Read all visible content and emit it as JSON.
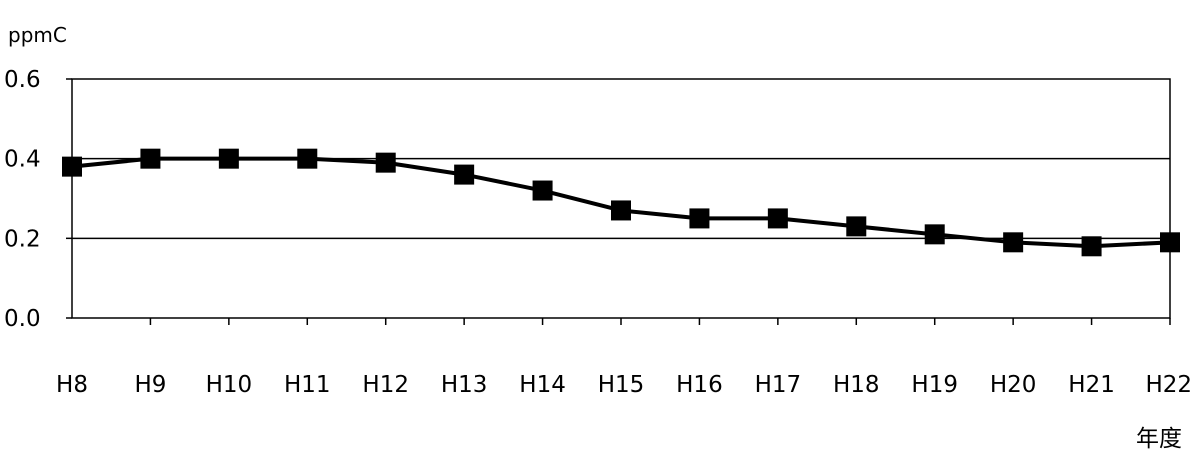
{
  "chart_data": {
    "type": "line",
    "title": "",
    "ylabel": "ppmC",
    "xlabel": "年度",
    "categories": [
      "H8",
      "H9",
      "H10",
      "H11",
      "H12",
      "H13",
      "H14",
      "H15",
      "H16",
      "H17",
      "H18",
      "H19",
      "H20",
      "H21",
      "H22"
    ],
    "series": [
      {
        "values": [
          0.38,
          0.4,
          0.4,
          0.4,
          0.39,
          0.36,
          0.32,
          0.27,
          0.25,
          0.25,
          0.23,
          0.21,
          0.19,
          0.18,
          0.19
        ]
      }
    ],
    "ylim": [
      0.0,
      0.6
    ],
    "yticks": [
      0.0,
      0.2,
      0.4,
      0.6
    ],
    "ytick_labels": [
      "0.0",
      "0.2",
      "0.4",
      "0.6"
    ],
    "grid": "horizontal",
    "legend": "none",
    "line_color": "#000000",
    "marker": "square"
  }
}
